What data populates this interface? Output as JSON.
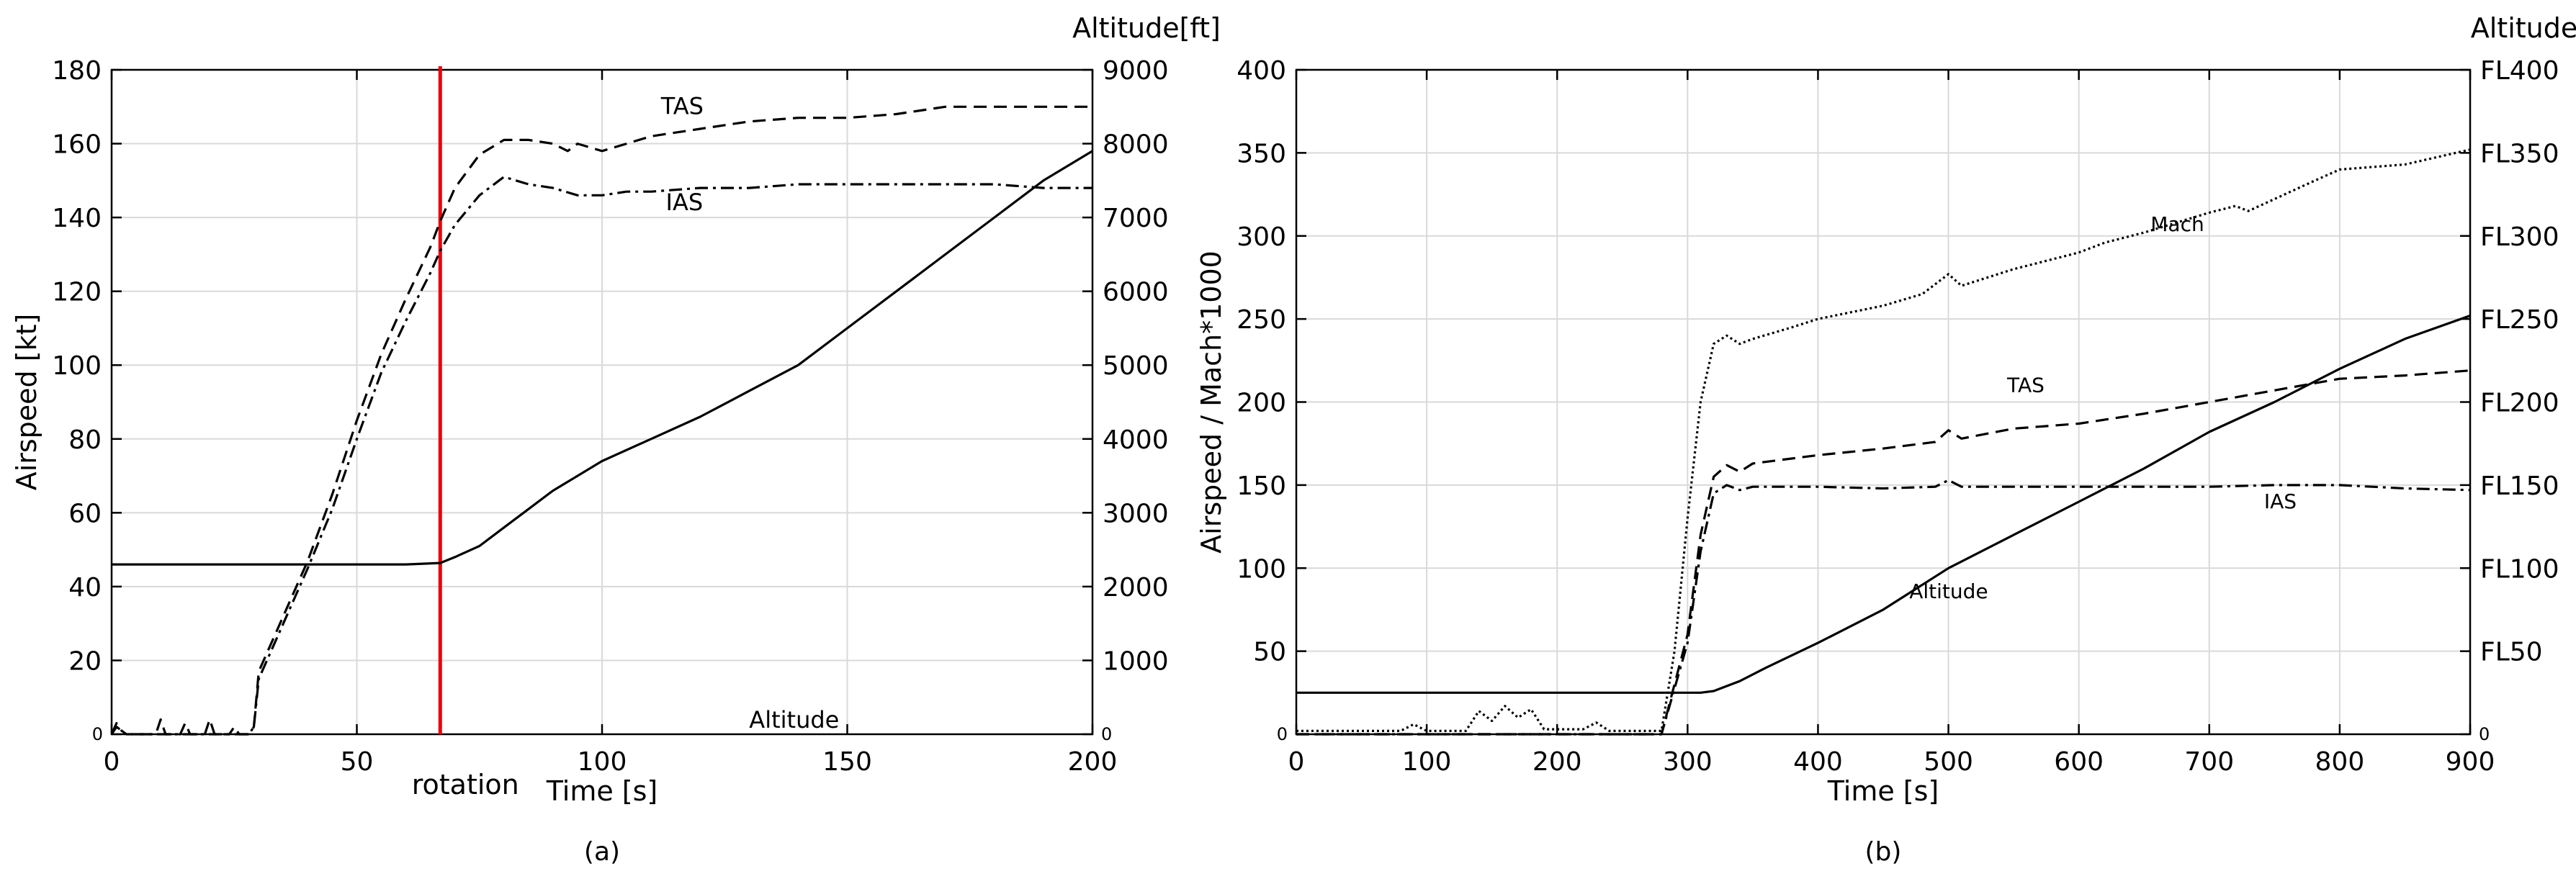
{
  "chart_data": [
    {
      "type": "line",
      "caption": "(a)",
      "xlabel": "Time [s]",
      "ylabel": "Airspeed [kt]",
      "y2label": "Altitude[ft]",
      "xlim": [
        0,
        200
      ],
      "ylim": [
        0,
        180
      ],
      "y2lim": [
        0,
        9000
      ],
      "xticks": [
        0,
        50,
        100,
        150,
        200
      ],
      "yticks": [
        0,
        20,
        40,
        60,
        80,
        100,
        120,
        140,
        160,
        180
      ],
      "y2ticks": [
        0,
        1000,
        2000,
        3000,
        4000,
        5000,
        6000,
        7000,
        8000,
        9000
      ],
      "grid": true,
      "rotation_marker": {
        "x": 67,
        "label": "rotation",
        "color": "#e8000b"
      },
      "series": [
        {
          "name": "TAS",
          "axis": "left",
          "dash": "18,10",
          "label_at": [
            112,
            168
          ],
          "x": [
            0,
            1,
            2,
            3,
            9,
            10,
            11,
            14,
            15,
            16,
            19,
            20,
            21,
            24,
            25,
            26,
            28,
            29,
            30,
            35,
            40,
            45,
            50,
            55,
            60,
            65,
            67,
            70,
            75,
            80,
            85,
            90,
            93,
            95,
            100,
            105,
            110,
            120,
            130,
            140,
            150,
            160,
            170,
            180,
            190,
            200
          ],
          "y": [
            0,
            3,
            1,
            0,
            0,
            4,
            0,
            0,
            3,
            0,
            0,
            4,
            0,
            0,
            2,
            0,
            0,
            2,
            17,
            32,
            47,
            65,
            85,
            103,
            118,
            132,
            139,
            148,
            157,
            161,
            161,
            160,
            158,
            160,
            158,
            160,
            162,
            164,
            166,
            167,
            167,
            168,
            170,
            170,
            170,
            170
          ]
        },
        {
          "name": "IAS",
          "axis": "left",
          "dash": "18,7,4,7",
          "label_at": [
            113,
            142
          ],
          "x": [
            0,
            1,
            3,
            28,
            29,
            30,
            35,
            40,
            45,
            50,
            55,
            60,
            65,
            67,
            70,
            75,
            80,
            85,
            90,
            95,
            100,
            105,
            110,
            120,
            130,
            140,
            150,
            160,
            170,
            180,
            190,
            200
          ],
          "y": [
            0,
            2,
            0,
            0,
            2,
            15,
            30,
            45,
            61,
            80,
            98,
            112,
            125,
            131,
            138,
            146,
            151,
            149,
            148,
            146,
            146,
            147,
            147,
            148,
            148,
            149,
            149,
            149,
            149,
            149,
            148,
            148
          ]
        },
        {
          "name": "Altitude",
          "axis": "right",
          "dash": "",
          "label_at": [
            130,
            89
          ],
          "x": [
            0,
            20,
            40,
            60,
            67,
            70,
            75,
            80,
            85,
            90,
            95,
            100,
            110,
            120,
            130,
            140,
            150,
            160,
            170,
            180,
            190,
            200
          ],
          "y": [
            2300,
            2300,
            2300,
            2300,
            2320,
            2400,
            2550,
            2800,
            3050,
            3300,
            3500,
            3700,
            4000,
            4300,
            4650,
            5000,
            5500,
            6000,
            6500,
            7000,
            7500,
            7900
          ]
        }
      ]
    },
    {
      "type": "line",
      "caption": "(b)",
      "xlabel": "Time [s]",
      "ylabel": "Airspeed / Mach*1000",
      "y2label": "Altitude",
      "xlim": [
        0,
        900
      ],
      "ylim": [
        0,
        400
      ],
      "y2lim": [
        0,
        400
      ],
      "xticks": [
        0,
        100,
        200,
        300,
        400,
        500,
        600,
        700,
        800,
        900
      ],
      "yticks": [
        0,
        50,
        100,
        150,
        200,
        250,
        300,
        350,
        400
      ],
      "y2ticks": [
        0,
        50,
        100,
        150,
        200,
        250,
        300,
        350,
        400
      ],
      "y2ticklabels": [
        "0",
        "FL50",
        "FL100",
        "FL150",
        "FL200",
        "FL250",
        "FL300",
        "FL350",
        "FL400"
      ],
      "grid": true,
      "series": [
        {
          "name": "Mach",
          "axis": "left",
          "dash": "3,4",
          "label_at": [
            655,
            303
          ],
          "x": [
            0,
            80,
            90,
            100,
            130,
            140,
            150,
            160,
            170,
            180,
            190,
            220,
            230,
            240,
            270,
            280,
            290,
            300,
            310,
            320,
            330,
            340,
            350,
            380,
            400,
            450,
            480,
            500,
            510,
            550,
            600,
            620,
            630,
            650,
            700,
            720,
            730,
            780,
            800,
            850,
            900
          ],
          "y": [
            2,
            2,
            6,
            2,
            2,
            14,
            8,
            17,
            10,
            15,
            3,
            3,
            7,
            2,
            2,
            2,
            50,
            130,
            200,
            235,
            240,
            235,
            238,
            245,
            250,
            258,
            265,
            277,
            270,
            280,
            290,
            296,
            298,
            302,
            314,
            318,
            315,
            333,
            340,
            343,
            352
          ]
        },
        {
          "name": "TAS",
          "axis": "left",
          "dash": "18,10",
          "label_at": [
            545,
            206
          ],
          "x": [
            0,
            280,
            300,
            310,
            320,
            330,
            340,
            350,
            400,
            450,
            490,
            500,
            510,
            550,
            600,
            650,
            700,
            750,
            800,
            850,
            900
          ],
          "y": [
            0,
            0,
            60,
            120,
            155,
            162,
            158,
            163,
            168,
            172,
            176,
            183,
            178,
            184,
            187,
            193,
            200,
            207,
            214,
            216,
            219
          ]
        },
        {
          "name": "IAS",
          "axis": "left",
          "dash": "18,7,4,7",
          "label_at": [
            742,
            136
          ],
          "x": [
            0,
            280,
            300,
            310,
            320,
            330,
            340,
            350,
            400,
            450,
            490,
            500,
            510,
            550,
            600,
            650,
            700,
            750,
            800,
            850,
            900
          ],
          "y": [
            0,
            0,
            55,
            110,
            145,
            150,
            147,
            149,
            149,
            148,
            149,
            153,
            149,
            149,
            149,
            149,
            149,
            150,
            150,
            148,
            147
          ]
        },
        {
          "name": "Altitude",
          "axis": "right",
          "dash": "",
          "label_at": [
            470,
            82
          ],
          "x": [
            0,
            280,
            300,
            310,
            320,
            340,
            360,
            400,
            450,
            500,
            550,
            600,
            650,
            700,
            750,
            800,
            850,
            900
          ],
          "y": [
            25,
            25,
            25,
            25,
            26,
            32,
            40,
            55,
            75,
            100,
            120,
            140,
            160,
            182,
            200,
            220,
            238,
            252
          ]
        }
      ]
    }
  ]
}
